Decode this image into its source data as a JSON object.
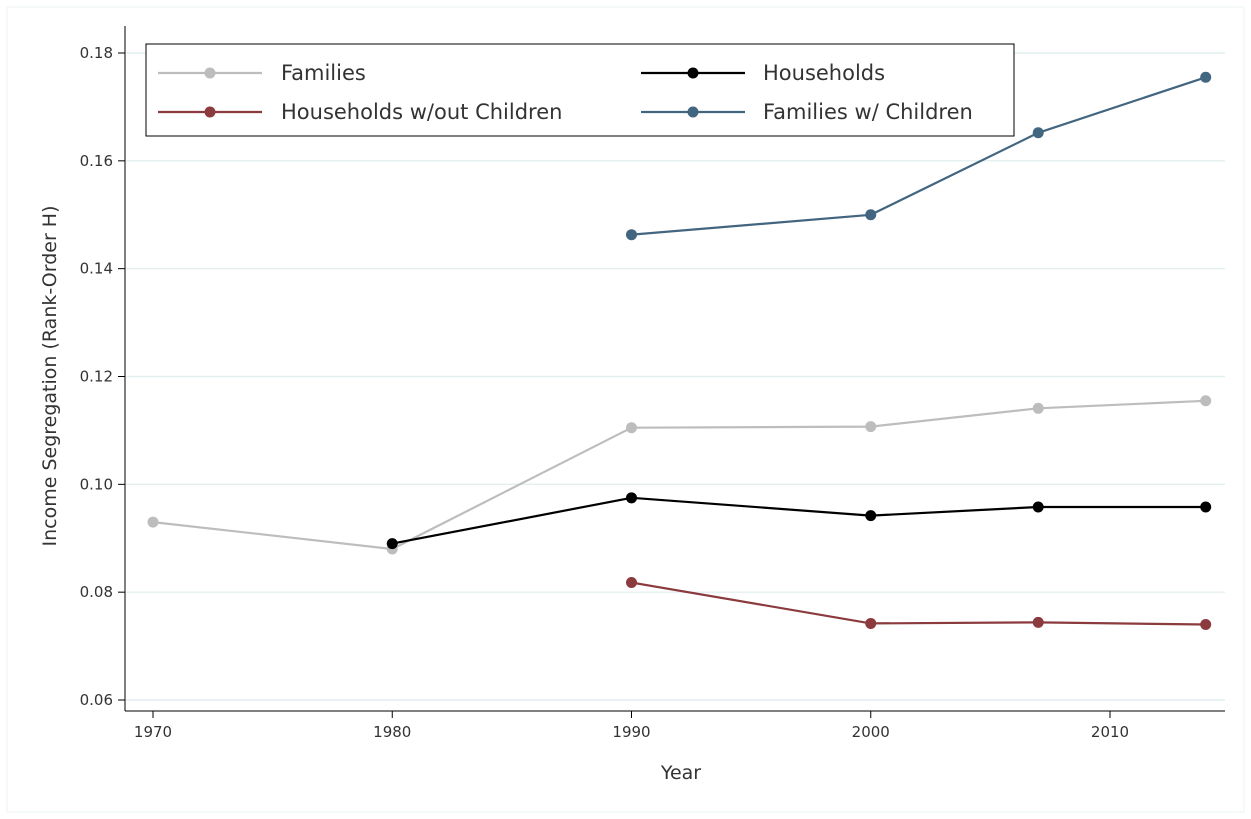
{
  "chart_data": {
    "type": "line",
    "title": "",
    "xlabel": "Year",
    "ylabel": "Income Segregation (Rank-Order H)",
    "xlim": [
      1969.5,
      2015.5
    ],
    "ylim": [
      0.056,
      0.182
    ],
    "xticks": [
      1970,
      1980,
      1990,
      2000,
      2010
    ],
    "xtick_labels": [
      "1970",
      "1980",
      "1990",
      "2000",
      "2010"
    ],
    "yticks": [
      0.06,
      0.08,
      0.1,
      0.12,
      0.14,
      0.16,
      0.18
    ],
    "ytick_labels": [
      "0.06",
      "0.08",
      "0.10",
      "0.12",
      "0.14",
      "0.16",
      "0.18"
    ],
    "grid": "horizontal",
    "legend_position": "top-left",
    "series": [
      {
        "name": "Families",
        "color": "#bdbdbd",
        "x": [
          1970,
          1980,
          1990,
          2000,
          2007,
          2014
        ],
        "y": [
          0.093,
          0.088,
          0.1105,
          0.1107,
          0.1141,
          0.1155
        ]
      },
      {
        "name": "Households",
        "color": "#000000",
        "x": [
          1980,
          1990,
          2000,
          2007,
          2014
        ],
        "y": [
          0.089,
          0.0975,
          0.0942,
          0.0958,
          0.0958
        ]
      },
      {
        "name": "Households w/out Children",
        "color": "#8b3a3e",
        "x": [
          1990,
          2000,
          2007,
          2014
        ],
        "y": [
          0.0818,
          0.0742,
          0.0744,
          0.074
        ]
      },
      {
        "name": "Families w/ Children",
        "color": "#426580",
        "x": [
          1990,
          2000,
          2007,
          2014
        ],
        "y": [
          0.1463,
          0.15,
          0.1652,
          0.1755
        ]
      }
    ],
    "legend_order": [
      0,
      1,
      2,
      3
    ]
  },
  "colors": {
    "background": "#ffffff",
    "gridline": "#e4efef",
    "axis": "#000000",
    "frame_border": "#eef3f3"
  }
}
